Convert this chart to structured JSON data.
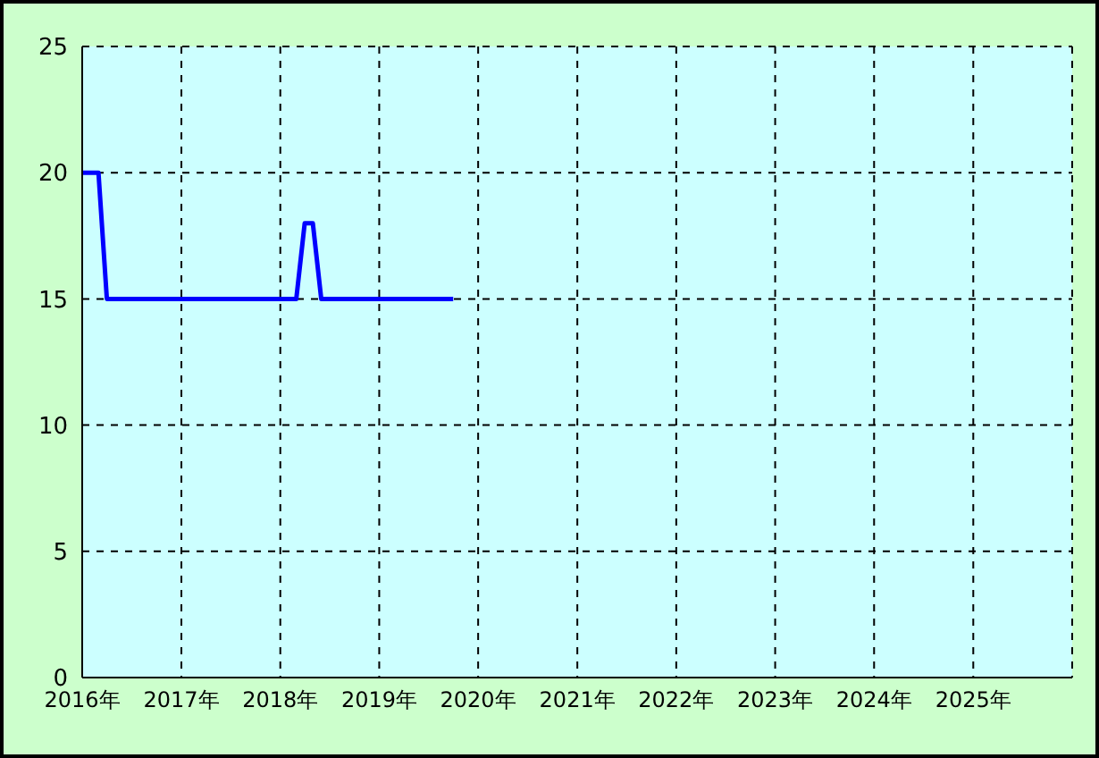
{
  "chart_data": {
    "type": "line",
    "x": [
      "2016-01",
      "2016-03",
      "2016-04",
      "2018-03",
      "2018-04",
      "2018-05",
      "2018-06",
      "2019-10"
    ],
    "series": [
      {
        "color": "#0000ff",
        "values": [
          20,
          20,
          15,
          15,
          18,
          18,
          15,
          15
        ]
      }
    ],
    "xlim": [
      "2016-01",
      "2026-01"
    ],
    "xticks": [
      {
        "value": "2016-01",
        "label": "2016年"
      },
      {
        "value": "2017-01",
        "label": "2017年"
      },
      {
        "value": "2018-01",
        "label": "2018年"
      },
      {
        "value": "2019-01",
        "label": "2019年"
      },
      {
        "value": "2020-01",
        "label": "2020年"
      },
      {
        "value": "2021-01",
        "label": "2021年"
      },
      {
        "value": "2022-01",
        "label": "2022年"
      },
      {
        "value": "2023-01",
        "label": "2023年"
      },
      {
        "value": "2024-01",
        "label": "2024年"
      },
      {
        "value": "2025-01",
        "label": "2025年"
      }
    ],
    "ylim": [
      0,
      25
    ],
    "yticks": [
      0,
      5,
      10,
      15,
      20,
      25
    ],
    "grid": true,
    "marker": "none",
    "line_style": "solid"
  }
}
